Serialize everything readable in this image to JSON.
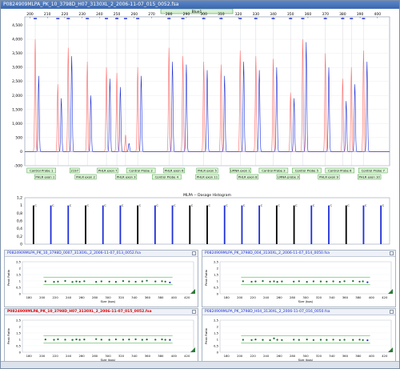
{
  "window": {
    "title": "P0824909MLPA_PK_10_3798D_H07_3130XL_2_2006-11-07_015_0052.fsa"
  },
  "colors": {
    "red": "#ff6a6a",
    "blue": "#1e2fd6",
    "black": "#000000",
    "green": "#2aa12a",
    "probe_bg": "#dff5d8",
    "probe_border": "#2a8c2a"
  },
  "chart_data": [
    {
      "type": "line",
      "title": "",
      "dye_label": "Blue1",
      "x_ticks": [
        200,
        210,
        220,
        230,
        240,
        250,
        260,
        270,
        280,
        290,
        300,
        310,
        320,
        330,
        340,
        350,
        360,
        370,
        380,
        390,
        400
      ],
      "y_ticks": [
        4500,
        4000,
        3500,
        3000,
        2500,
        2000,
        1500,
        1000,
        500,
        0,
        -500
      ],
      "xlim": [
        197,
        407
      ],
      "ylim": [
        -500,
        4800
      ],
      "series": [
        {
          "color": "red",
          "peaks": [
            [
              203,
              4000
            ],
            [
              216,
              2400
            ],
            [
              222,
              3700
            ],
            [
              233,
              3200
            ],
            [
              244,
              3000
            ],
            [
              250,
              2800
            ],
            [
              255,
              600
            ],
            [
              262,
              3000
            ],
            [
              280,
              3700
            ],
            [
              288,
              3400
            ],
            [
              300,
              3200
            ],
            [
              310,
              3100
            ],
            [
              321,
              3600
            ],
            [
              330,
              3400
            ],
            [
              340,
              3300
            ],
            [
              350,
              2100
            ],
            [
              357,
              4000
            ],
            [
              370,
              3500
            ],
            [
              380,
              2600
            ],
            [
              385,
              3000
            ],
            [
              392,
              3600
            ]
          ]
        },
        {
          "color": "blue",
          "peaks": [
            [
              205,
              2700
            ],
            [
              218,
              1900
            ],
            [
              224,
              3400
            ],
            [
              235,
              2000
            ],
            [
              246,
              2600
            ],
            [
              252,
              2300
            ],
            [
              257,
              300
            ],
            [
              264,
              2700
            ],
            [
              282,
              3200
            ],
            [
              290,
              3100
            ],
            [
              302,
              2900
            ],
            [
              312,
              2700
            ],
            [
              323,
              3200
            ],
            [
              332,
              2900
            ],
            [
              342,
              3000
            ],
            [
              352,
              1900
            ],
            [
              359,
              3900
            ],
            [
              372,
              3000
            ],
            [
              382,
              1800
            ],
            [
              387,
              2400
            ],
            [
              394,
              3200
            ]
          ]
        }
      ],
      "probes_row1": [
        "Control Probe 1",
        "2197",
        "PHLR exon 7",
        "Control Probe 2",
        "PHLR exon 6",
        "PHLR exon 5",
        "LMNA exon 1",
        "Control Probe 3",
        "Control Probe 5",
        "Control Probe 6",
        "Control Probe 7"
      ],
      "probes_row2": [
        "PHLR exon 1",
        "PHLR exon 2",
        "PHLR exon 3",
        "Control Probe 4",
        "PHLR exon 11",
        "PHLR exon 8",
        "LMNA probe 3",
        "PHLR exon 9",
        "PHLR exon 10"
      ]
    },
    {
      "type": "bar",
      "title": "MLPA -- Dosage Histogram",
      "y_ticks": [
        1.2,
        1,
        0.8,
        0.6,
        0.4,
        0.2,
        0
      ],
      "ylim": [
        0,
        1.2
      ],
      "bar_labels": "C",
      "bars": [
        {
          "color": "black",
          "value": 1.0
        },
        {
          "color": "blue",
          "value": 1.0
        },
        {
          "color": "blue",
          "value": 1.0
        },
        {
          "color": "black",
          "value": 1.0
        },
        {
          "color": "blue",
          "value": 1.0
        },
        {
          "color": "blue",
          "value": 1.0
        },
        {
          "color": "black",
          "value": 1.0
        },
        {
          "color": "blue",
          "value": 1.0
        },
        {
          "color": "blue",
          "value": 1.0
        },
        {
          "color": "black",
          "value": 1.0
        },
        {
          "color": "black",
          "value": 1.0
        },
        {
          "color": "blue",
          "value": 1.0
        },
        {
          "color": "blue",
          "value": 1.0
        },
        {
          "color": "blue",
          "value": 1.0
        },
        {
          "color": "black",
          "value": 1.0
        },
        {
          "color": "black",
          "value": 1.0
        },
        {
          "color": "blue",
          "value": 1.0
        },
        {
          "color": "blue",
          "value": 1.0
        },
        {
          "color": "black",
          "value": 1.0
        },
        {
          "color": "blue",
          "value": 1.0
        },
        {
          "color": "blue",
          "value": 1.0
        }
      ]
    },
    {
      "type": "scatter",
      "title": "P0824909MLPA_PK_10_3798D_0007_3130XL_2_2006-11-07_013_0052.fsa",
      "title_color": "blue",
      "xlabel": "Size (bps)",
      "ylabel": "Peak Ratio",
      "x_ticks": [
        180,
        200,
        220,
        240,
        260,
        280,
        300,
        320,
        340,
        360,
        380,
        400,
        420
      ],
      "y_ticks": [
        2.5,
        2,
        1.5,
        1,
        0.5,
        0
      ],
      "xlim": [
        170,
        430
      ],
      "ylim": [
        0,
        2.5
      ],
      "band": [
        0.7,
        1.3
      ],
      "x": [
        205,
        218,
        224,
        235,
        246,
        252,
        257,
        264,
        282,
        290,
        302,
        312,
        323,
        332,
        342,
        352,
        359,
        372,
        382,
        387,
        394
      ],
      "y": [
        0.97,
        0.93,
        0.95,
        1.0,
        0.92,
        0.96,
        0.94,
        0.98,
        0.93,
        0.97,
        0.95,
        0.93,
        0.99,
        0.96,
        0.94,
        0.97,
        1.02,
        0.96,
        0.98,
        0.95,
        0.88
      ]
    },
    {
      "type": "scatter",
      "title": "P0824909MLPA_PK_3798D_004_3130XL_2_2006-11-07_014_0050.fsa",
      "title_color": "blue",
      "xlabel": "Size (bps)",
      "ylabel": "Peak Ratio",
      "x_ticks": [
        180,
        200,
        220,
        240,
        260,
        280,
        300,
        320,
        340,
        360,
        380,
        400,
        420
      ],
      "y_ticks": [
        2.5,
        2,
        1.5,
        1,
        0.5,
        0
      ],
      "xlim": [
        170,
        430
      ],
      "ylim": [
        0,
        2.5
      ],
      "band": [
        0.7,
        1.3
      ],
      "x": [
        205,
        218,
        224,
        235,
        246,
        252,
        257,
        264,
        282,
        290,
        302,
        312,
        323,
        332,
        342,
        352,
        359,
        372,
        382,
        387,
        394
      ],
      "y": [
        0.98,
        0.94,
        0.96,
        0.99,
        0.95,
        0.97,
        0.93,
        0.96,
        0.95,
        0.98,
        0.93,
        0.97,
        0.96,
        0.95,
        0.97,
        0.93,
        0.98,
        0.99,
        0.95,
        0.97,
        0.9
      ]
    },
    {
      "type": "scatter",
      "title": "P0824909MLPA_PK_10_3798D_H07_3130XL_2_2006-11-07_015_0052.fsa",
      "title_color": "red",
      "xlabel": "Size (bps)",
      "ylabel": "Peak Ratio",
      "x_ticks": [
        180,
        200,
        220,
        240,
        260,
        280,
        300,
        320,
        340,
        360,
        380,
        400,
        420
      ],
      "y_ticks": [
        2.5,
        2,
        1.5,
        1,
        0.5,
        0
      ],
      "xlim": [
        170,
        430
      ],
      "ylim": [
        0,
        2.5
      ],
      "band": [
        0.7,
        1.3
      ],
      "x": [
        205,
        218,
        224,
        235,
        246,
        252,
        257,
        264,
        282,
        290,
        302,
        312,
        323,
        332,
        342,
        352,
        359,
        372,
        382,
        387,
        394
      ],
      "y": [
        0.99,
        0.97,
        1.01,
        0.98,
        0.96,
        1.0,
        0.97,
        0.99,
        1.02,
        0.98,
        0.97,
        1.0,
        0.98,
        0.99,
        1.01,
        0.97,
        0.99,
        0.98,
        1.0,
        0.97,
        0.96
      ]
    },
    {
      "type": "scatter",
      "title": "P0824909MLPA_PK_3798D_H04_3130XL_2_2006-11-07_016_0050.fsa",
      "title_color": "blue",
      "xlabel": "Size (bps)",
      "ylabel": "Peak Ratio",
      "x_ticks": [
        180,
        200,
        220,
        240,
        260,
        280,
        300,
        320,
        340,
        360,
        380,
        400,
        420
      ],
      "y_ticks": [
        2.5,
        2,
        1.5,
        1,
        0.5,
        0
      ],
      "xlim": [
        170,
        430
      ],
      "ylim": [
        0,
        2.5
      ],
      "band": [
        0.7,
        1.3
      ],
      "x": [
        205,
        218,
        224,
        235,
        246,
        252,
        257,
        264,
        282,
        290,
        302,
        312,
        323,
        332,
        342,
        352,
        359,
        372,
        382,
        387,
        394
      ],
      "y": [
        0.97,
        0.95,
        0.99,
        0.96,
        0.94,
        1.08,
        0.97,
        0.95,
        0.98,
        0.96,
        0.99,
        0.95,
        0.97,
        0.96,
        0.98,
        0.95,
        0.97,
        0.96,
        0.98,
        0.95,
        0.93
      ]
    }
  ]
}
